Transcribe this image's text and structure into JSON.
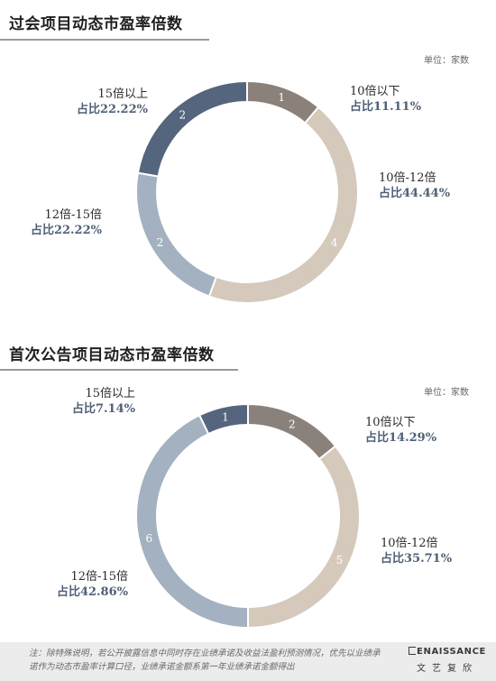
{
  "footer": {
    "note": "注：除特殊说明，若公开披露信息中同时存在业绩承诺及收益法盈利预测情况，优先以业绩承诺作为动态市盈率计算口径，业绩承诺金额系第一年业绩承诺金额得出",
    "brand_en": "ENAISSANCE",
    "brand_cn": "文艺复欣"
  },
  "colors": {
    "below10": "#8b817b",
    "b10_12": "#d5c9bc",
    "b12_15": "#a3b1c0",
    "above15": "#56657e",
    "label_pct": "#4f6077"
  },
  "chart_data": [
    {
      "type": "pie",
      "donut": true,
      "title": "过会项目动态市盈率倍数",
      "unit": "单位：家数",
      "categories": [
        "10倍以下",
        "10倍-12倍",
        "12倍-15倍",
        "15倍以上"
      ],
      "values": [
        1,
        4,
        2,
        2
      ],
      "share_labels": [
        "占比11.11%",
        "占比44.44%",
        "占比22.22%",
        "占比22.22%"
      ],
      "value_labels": [
        "1",
        "4",
        "2",
        "2"
      ]
    },
    {
      "type": "pie",
      "donut": true,
      "title": "首次公告项目动态市盈率倍数",
      "unit": "单位：家数",
      "categories": [
        "10倍以下",
        "10倍-12倍",
        "12倍-15倍",
        "15倍以上"
      ],
      "values": [
        2,
        5,
        6,
        1
      ],
      "share_labels": [
        "占比14.29%",
        "占比35.71%",
        "占比42.86%",
        "占比7.14%"
      ],
      "value_labels": [
        "2",
        "5",
        "6",
        "1"
      ]
    }
  ]
}
